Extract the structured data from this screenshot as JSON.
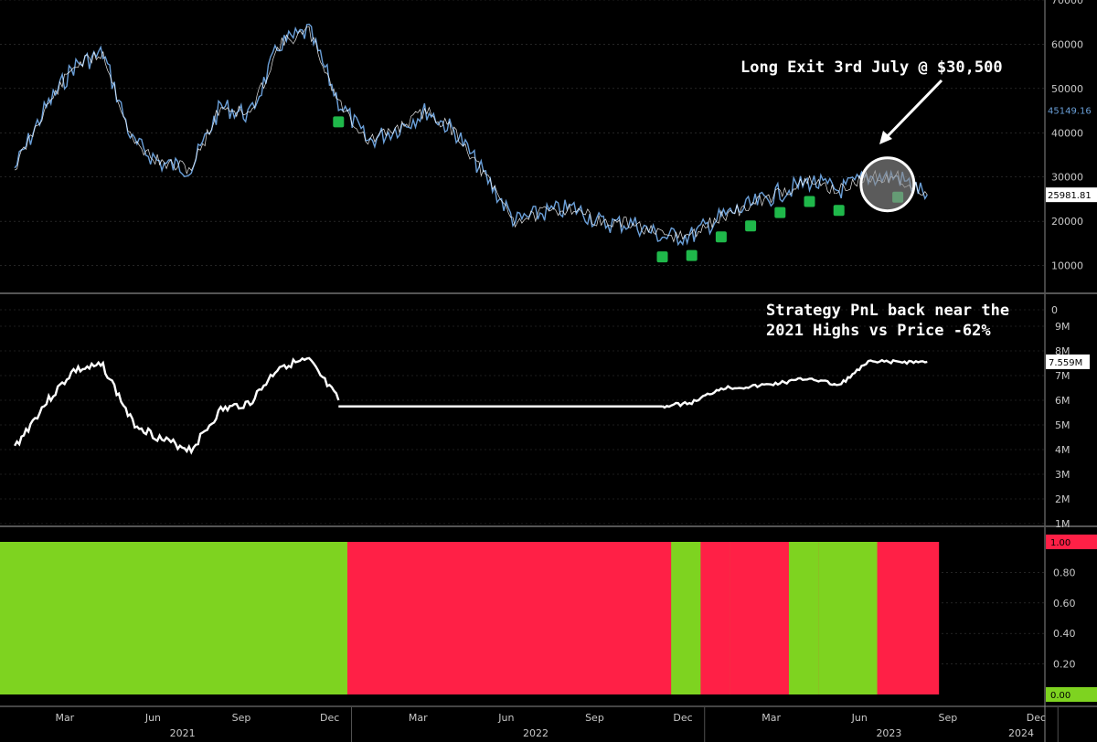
{
  "annotations": {
    "exit_label": "Long Exit 3rd July @ $30,500",
    "pnl_line1": "Strategy PnL back near the",
    "pnl_line2": "2021 Highs vs Price -62%"
  },
  "colors": {
    "background": "#000000",
    "price_line": "#6a9fd8",
    "trade_marker": "#1fb84a",
    "signal_long": "#7ed320",
    "signal_short": "#ff2046",
    "pnl_line": "#ffffff",
    "grid": "#3a3a3a"
  },
  "chart_data": [
    {
      "type": "line",
      "panel": "price",
      "series": [
        {
          "values_by_month": [
            [
              "2021-01",
              32000
            ],
            [
              "2021-02",
              45000
            ],
            [
              "2021-03",
              55000
            ],
            [
              "2021-04",
              58000
            ],
            [
              "2021-05",
              38000
            ],
            [
              "2021-06",
              33000
            ],
            [
              "2021-07",
              32000
            ],
            [
              "2021-08",
              46000
            ],
            [
              "2021-09",
              44000
            ],
            [
              "2021-10",
              60000
            ],
            [
              "2021-11",
              63000
            ],
            [
              "2021-12",
              47000
            ],
            [
              "2022-01",
              38000
            ],
            [
              "2022-02",
              41000
            ],
            [
              "2022-03",
              45000
            ],
            [
              "2022-04",
              40000
            ],
            [
              "2022-05",
              30000
            ],
            [
              "2022-06",
              20000
            ],
            [
              "2022-07",
              22000
            ],
            [
              "2022-08",
              23000
            ],
            [
              "2022-09",
              19500
            ],
            [
              "2022-10",
              19500
            ],
            [
              "2022-11",
              16500
            ],
            [
              "2022-12",
              16800
            ],
            [
              "2023-01",
              21000
            ],
            [
              "2023-02",
              23500
            ],
            [
              "2023-03",
              26500
            ],
            [
              "2023-04",
              29000
            ],
            [
              "2023-05",
              27000
            ],
            [
              "2023-06",
              30000
            ],
            [
              "2023-07",
              30000
            ],
            [
              "2023-08",
              26000
            ]
          ]
        }
      ],
      "markers": [
        "2021-12",
        "2022-11",
        "2022-12",
        "2023-01",
        "2023-02",
        "2023-03",
        "2023-04",
        "2023-05",
        "2023-07"
      ],
      "last_value_labels": [
        "45149.16",
        "25981.81"
      ],
      "yticks": [
        "0",
        "10000",
        "20000",
        "30000",
        "40000",
        "50000",
        "60000",
        "70000"
      ],
      "ylim": [
        0,
        70000
      ]
    },
    {
      "type": "line",
      "panel": "pnl",
      "series": [
        {
          "values_by_month": [
            [
              "2021-01",
              4.1
            ],
            [
              "2021-02",
              5.8
            ],
            [
              "2021-03",
              7.2
            ],
            [
              "2021-04",
              7.4
            ],
            [
              "2021-05",
              5.1
            ],
            [
              "2021-06",
              4.4
            ],
            [
              "2021-07",
              4.0
            ],
            [
              "2021-08",
              5.6
            ],
            [
              "2021-09",
              5.9
            ],
            [
              "2021-10",
              7.4
            ],
            [
              "2021-11",
              7.6
            ],
            [
              "2021-12",
              6.0
            ],
            [
              "2022-11",
              5.75
            ],
            [
              "2022-12",
              5.9
            ],
            [
              "2023-01",
              6.5
            ],
            [
              "2023-02",
              6.55
            ],
            [
              "2023-03",
              6.7
            ],
            [
              "2023-04",
              6.9
            ],
            [
              "2023-05",
              6.6
            ],
            [
              "2023-06",
              7.55
            ],
            [
              "2023-08",
              7.56
            ]
          ]
        }
      ],
      "last_value_label": "7.559M",
      "yticks": [
        "1M",
        "2M",
        "3M",
        "4M",
        "5M",
        "6M",
        "7M",
        "8M",
        "9M"
      ],
      "ylim": [
        0,
        9.5
      ]
    },
    {
      "type": "area",
      "panel": "signal",
      "regime_segments": [
        {
          "start": "2021-01",
          "end": "2021-12",
          "state": "long"
        },
        {
          "start": "2021-12",
          "end": "2022-11",
          "state": "short"
        },
        {
          "start": "2022-11",
          "end": "2022-12",
          "state": "long"
        },
        {
          "start": "2022-12",
          "end": "2023-01",
          "state": "short"
        },
        {
          "start": "2023-01",
          "end": "2023-01",
          "state": "long"
        },
        {
          "start": "2023-01",
          "end": "2023-03",
          "state": "short"
        },
        {
          "start": "2023-03",
          "end": "2023-04",
          "state": "long"
        },
        {
          "start": "2023-04",
          "end": "2023-04",
          "state": "short"
        },
        {
          "start": "2023-04",
          "end": "2023-06",
          "state": "long"
        },
        {
          "start": "2023-06",
          "end": "2023-08",
          "state": "short"
        }
      ],
      "current_values": [
        "1.00",
        "0.00"
      ],
      "yticks": [
        "0.20",
        "0.40",
        "0.60",
        "0.80"
      ],
      "ylim": [
        0,
        1
      ]
    }
  ],
  "xaxis": {
    "months": [
      "Mar",
      "Jun",
      "Sep",
      "Dec",
      "Mar",
      "Jun",
      "Sep",
      "Dec",
      "Mar",
      "Jun",
      "Sep",
      "Dec"
    ],
    "years": [
      "2021",
      "2022",
      "2023",
      "2024"
    ]
  }
}
